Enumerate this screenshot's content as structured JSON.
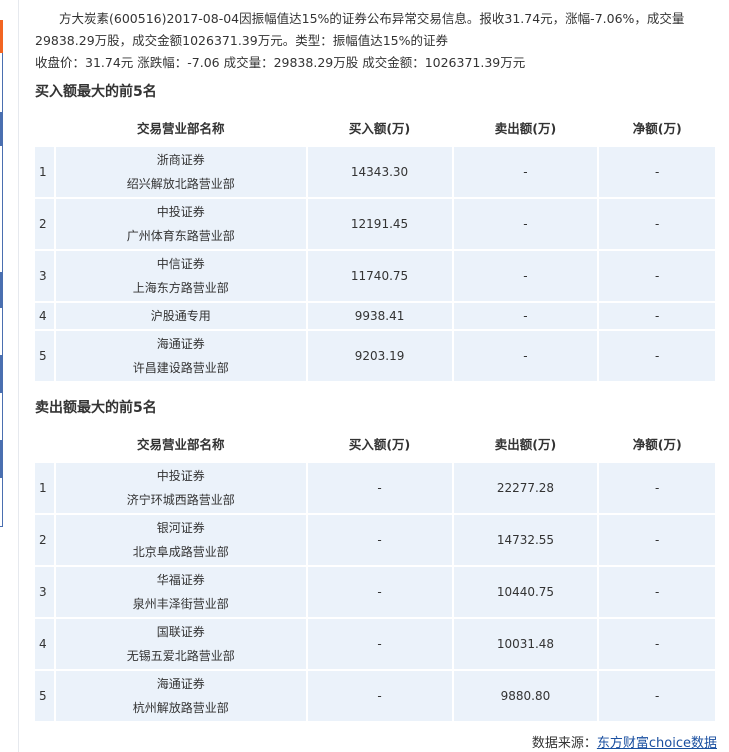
{
  "intro": "方大炭素(600516)2017-08-04因振幅值达15%的证券公布异常交易信息。报收31.74元，涨幅-7.06%，成交量29838.29万股，成交金额1026371.39万元。类型：振幅值达15%的证券",
  "summary": "收盘价：31.74元 涨跌幅：-7.06 成交量：29838.29万股 成交金额：1026371.39万元",
  "colors": {
    "accent_orange": "#f26522",
    "accent_blue": "#4a6fb0",
    "row_bg": "#ebf2fa",
    "link": "#1a4fa0"
  },
  "headers": [
    "交易营业部名称",
    "买入额(万)",
    "卖出额(万)",
    "净额(万)"
  ],
  "buy": {
    "title": "买入额最大的前5名",
    "rows": [
      {
        "rank": "1",
        "firm": "浙商证券",
        "branch": "绍兴解放北路营业部",
        "buy": "14343.30",
        "sell": "-",
        "net": "-"
      },
      {
        "rank": "2",
        "firm": "中投证券",
        "branch": "广州体育东路营业部",
        "buy": "12191.45",
        "sell": "-",
        "net": "-"
      },
      {
        "rank": "3",
        "firm": "中信证券",
        "branch": "上海东方路营业部",
        "buy": "11740.75",
        "sell": "-",
        "net": "-"
      },
      {
        "rank": "4",
        "firm": "沪股通专用",
        "branch": "",
        "buy": "9938.41",
        "sell": "-",
        "net": "-"
      },
      {
        "rank": "5",
        "firm": "海通证券",
        "branch": "许昌建设路营业部",
        "buy": "9203.19",
        "sell": "-",
        "net": "-"
      }
    ]
  },
  "sell": {
    "title": "卖出额最大的前5名",
    "rows": [
      {
        "rank": "1",
        "firm": "中投证券",
        "branch": "济宁环城西路营业部",
        "buy": "-",
        "sell": "22277.28",
        "net": "-"
      },
      {
        "rank": "2",
        "firm": "银河证券",
        "branch": "北京阜成路营业部",
        "buy": "-",
        "sell": "14732.55",
        "net": "-"
      },
      {
        "rank": "3",
        "firm": "华福证券",
        "branch": "泉州丰泽街营业部",
        "buy": "-",
        "sell": "10440.75",
        "net": "-"
      },
      {
        "rank": "4",
        "firm": "国联证券",
        "branch": "无锡五爱北路营业部",
        "buy": "-",
        "sell": "10031.48",
        "net": "-"
      },
      {
        "rank": "5",
        "firm": "海通证券",
        "branch": "杭州解放路营业部",
        "buy": "-",
        "sell": "9880.80",
        "net": "-"
      }
    ]
  },
  "footer": {
    "label": "数据来源：",
    "link": "东方财富choice数据"
  }
}
